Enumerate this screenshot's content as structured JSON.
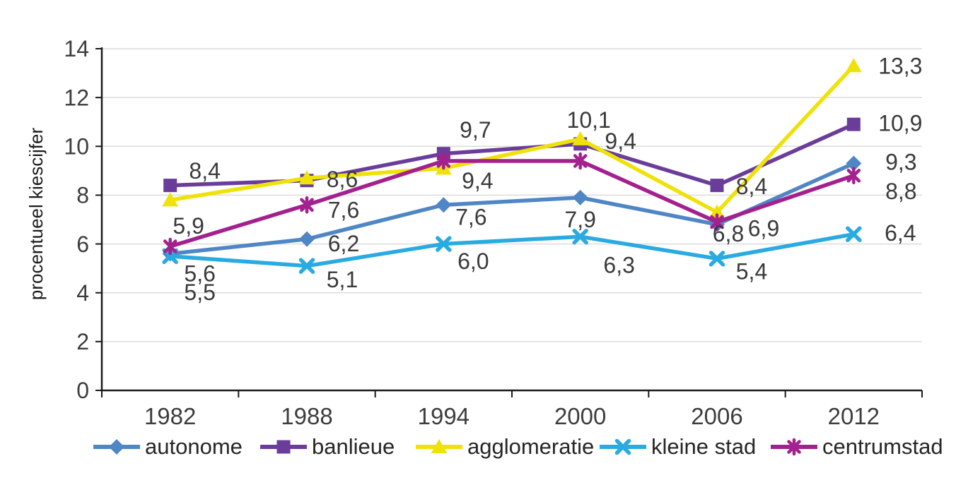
{
  "chart_data": {
    "type": "line",
    "title": "",
    "xlabel": "",
    "ylabel": "procentueel kiescijfer",
    "categories": [
      "1982",
      "1988",
      "1994",
      "2000",
      "2006",
      "2012"
    ],
    "ylim": [
      0,
      14
    ],
    "yticks": [
      0,
      2,
      4,
      6,
      8,
      10,
      12,
      14
    ],
    "grid": true,
    "legend_position": "bottom",
    "decimal_separator": ",",
    "series": [
      {
        "name": "autonome",
        "color": "#4F86C6",
        "marker": "diamond",
        "values": [
          5.6,
          6.2,
          7.6,
          7.9,
          6.8,
          9.3
        ],
        "point_labels": [
          "5,6",
          "6,2",
          "7,6",
          "7,9",
          "6,8",
          "9,3"
        ]
      },
      {
        "name": "banlieue",
        "color": "#6A3D9A",
        "marker": "square",
        "values": [
          8.4,
          8.6,
          9.7,
          10.1,
          8.4,
          10.9
        ],
        "point_labels": [
          "8,4",
          "8,6",
          "9,7",
          "10,1",
          "8,4",
          "10,9"
        ]
      },
      {
        "name": "agglomeratie",
        "color": "#EFE20A",
        "marker": "triangle",
        "values": [
          7.8,
          8.7,
          9.1,
          10.3,
          7.3,
          13.3
        ],
        "point_labels": [
          null,
          null,
          null,
          null,
          null,
          "13,3"
        ]
      },
      {
        "name": "kleine stad",
        "color": "#29ABE2",
        "marker": "x",
        "values": [
          5.5,
          5.1,
          6.0,
          6.3,
          5.4,
          6.4
        ],
        "point_labels": [
          "5,5",
          "5,1",
          "6,0",
          "6,3",
          "5,4",
          "6,4"
        ]
      },
      {
        "name": "centrumstad",
        "color": "#A3218E",
        "marker": "asterisk",
        "values": [
          5.9,
          7.6,
          9.4,
          9.4,
          6.9,
          8.8
        ],
        "point_labels": [
          "5,9",
          "7,6",
          "9,4",
          "9,4",
          "6,9",
          "8,8"
        ]
      }
    ]
  }
}
